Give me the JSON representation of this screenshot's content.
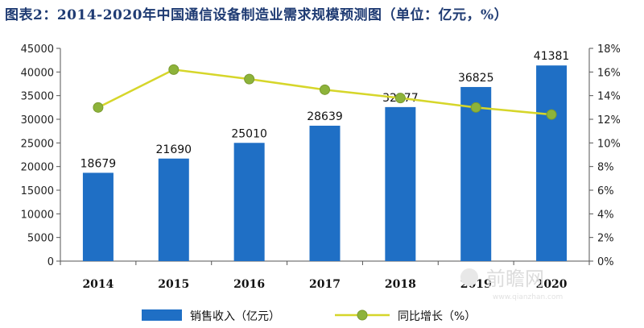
{
  "chart_data": {
    "type": "bar",
    "title": "图表2：2014-2020年中国通信设备制造业需求规模预测图（单位：亿元，%）",
    "categories": [
      "2014",
      "2015",
      "2016",
      "2017",
      "2018",
      "2019",
      "2020"
    ],
    "series": [
      {
        "name": "销售收入（亿元）",
        "type": "bar",
        "axis": "left",
        "color": "#1f6fc5",
        "values": [
          18679,
          21690,
          25010,
          28639,
          32577,
          36825,
          41381
        ]
      },
      {
        "name": "同比增长（%）",
        "type": "line",
        "axis": "right",
        "color": "#d6d62a",
        "marker_color": "#8db33a",
        "values": [
          13.0,
          16.2,
          15.4,
          14.5,
          13.8,
          13.0,
          12.4
        ]
      }
    ],
    "ylim": [
      0,
      45000
    ],
    "yticks": [
      0,
      5000,
      10000,
      15000,
      20000,
      25000,
      30000,
      35000,
      40000,
      45000
    ],
    "y2lim": [
      0,
      18
    ],
    "y2ticks": [
      "0%",
      "2%",
      "4%",
      "6%",
      "8%",
      "10%",
      "12%",
      "14%",
      "16%",
      "18%"
    ],
    "grid": false,
    "legend_position": "bottom"
  },
  "watermark": {
    "name": "前瞻网",
    "url": "www.qianzhan.com"
  }
}
